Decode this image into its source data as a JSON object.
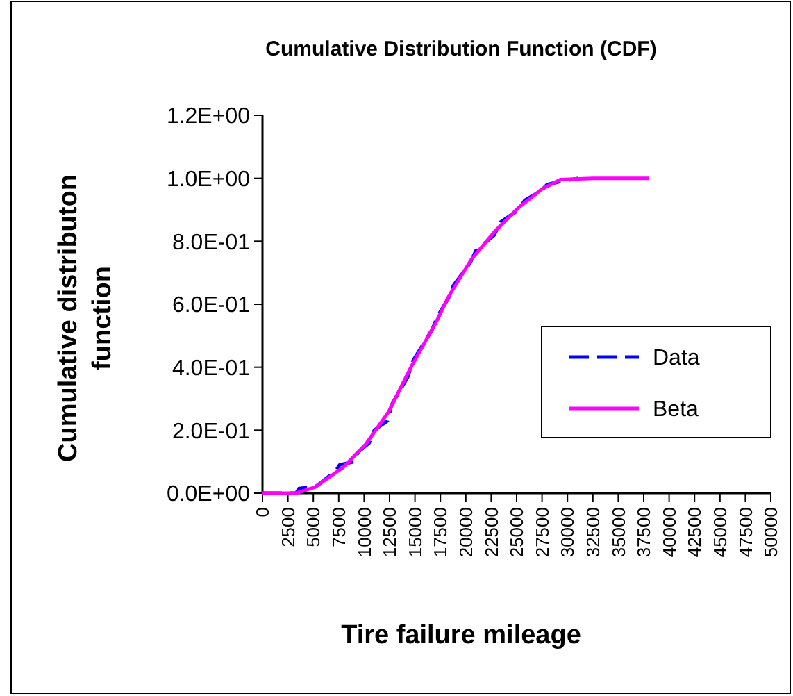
{
  "chart_data": {
    "type": "line",
    "title": "Cumulative Distribution Function (CDF)",
    "xlabel": "Tire failure mileage",
    "ylabel": "Cumulative distributon function",
    "xlim": [
      0,
      50000
    ],
    "xticks": [
      0,
      2500,
      5000,
      7500,
      10000,
      12500,
      15000,
      17500,
      20000,
      22500,
      25000,
      27500,
      30000,
      32500,
      35000,
      37500,
      40000,
      42500,
      45000,
      47500,
      50000
    ],
    "ylim": [
      0,
      1.2
    ],
    "yticks": [
      {
        "value": 0,
        "label": "0.0E+00"
      },
      {
        "value": 0.2,
        "label": "2.0E-01"
      },
      {
        "value": 0.4,
        "label": "4.0E-01"
      },
      {
        "value": 0.6,
        "label": "6.0E-01"
      },
      {
        "value": 0.8,
        "label": "8.0E-01"
      },
      {
        "value": 1,
        "label": "1.0E+00"
      },
      {
        "value": 1.2,
        "label": "1.2E+00"
      }
    ],
    "legend": "right",
    "grid": false,
    "series": [
      {
        "name": "Data",
        "color": "#0000ff",
        "line_style": "dashed",
        "x": [
          0,
          3300,
          3600,
          5200,
          5600,
          7200,
          7600,
          9000,
          9400,
          10500,
          11000,
          12300,
          12700,
          14300,
          14800,
          16700,
          17200,
          18300,
          18800,
          20400,
          21000,
          22800,
          23400,
          25200,
          25800,
          27400,
          28000,
          29300,
          31100
        ],
        "values": [
          0,
          0,
          0.015,
          0.02,
          0.03,
          0.07,
          0.09,
          0.1,
          0.13,
          0.16,
          0.2,
          0.23,
          0.28,
          0.37,
          0.42,
          0.52,
          0.56,
          0.62,
          0.66,
          0.73,
          0.77,
          0.82,
          0.86,
          0.9,
          0.93,
          0.96,
          0.98,
          0.99,
          1
        ]
      },
      {
        "name": "Beta",
        "color": "#ff00ff",
        "line_style": "solid",
        "x": [
          0,
          3300,
          5150,
          7900,
          10150,
          12400,
          14700,
          17000,
          18350,
          20600,
          22900,
          25200,
          27500,
          29300,
          32500,
          38000
        ],
        "values": [
          0,
          0,
          0.019,
          0.081,
          0.155,
          0.258,
          0.406,
          0.538,
          0.627,
          0.745,
          0.833,
          0.907,
          0.966,
          0.996,
          1,
          1
        ]
      }
    ]
  }
}
